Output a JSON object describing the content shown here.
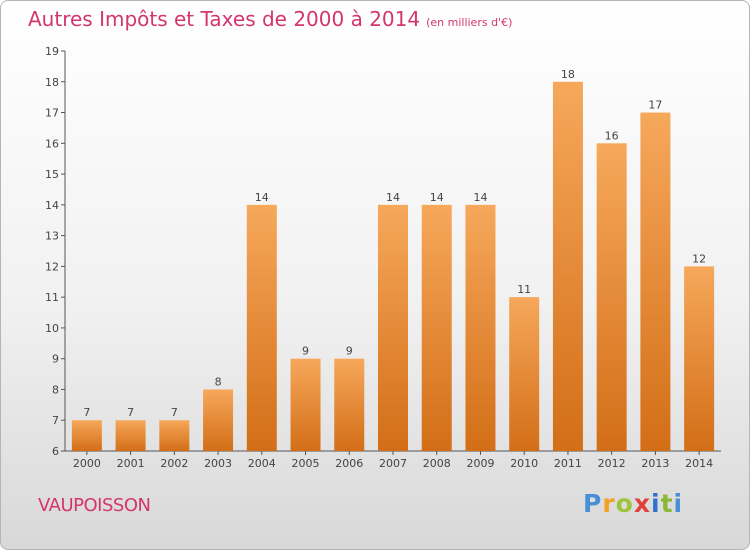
{
  "title": "Autres Impôts et Taxes de 2000 à 2014",
  "title_unit": "(en milliers d'€)",
  "commune": "VAUPOISSON",
  "logo": {
    "letters": [
      "P",
      "r",
      "o",
      "x",
      "i",
      "t",
      "i"
    ]
  },
  "colors": {
    "title": "#d4356f",
    "bar_top": "#f6a85b",
    "bar_bottom": "#d36e17"
  },
  "chart_data": {
    "type": "bar",
    "categories": [
      "2000",
      "2001",
      "2002",
      "2003",
      "2004",
      "2005",
      "2006",
      "2007",
      "2008",
      "2009",
      "2010",
      "2011",
      "2012",
      "2013",
      "2014"
    ],
    "values": [
      7,
      7,
      7,
      8,
      14,
      9,
      9,
      14,
      14,
      14,
      11,
      18,
      16,
      17,
      12
    ],
    "data_labels": [
      "7",
      "7",
      "7",
      "8",
      "14",
      "9",
      "9",
      "14",
      "14",
      "14",
      "11",
      "18",
      "16",
      "17",
      "12"
    ],
    "title": "Autres Impôts et Taxes de 2000 à 2014",
    "xlabel": "",
    "ylabel": "",
    "ylim": [
      6,
      19
    ],
    "yticks": [
      "6",
      "7",
      "8",
      "9",
      "10",
      "11",
      "12",
      "13",
      "14",
      "15",
      "16",
      "17",
      "18",
      "19"
    ],
    "grid": false
  }
}
